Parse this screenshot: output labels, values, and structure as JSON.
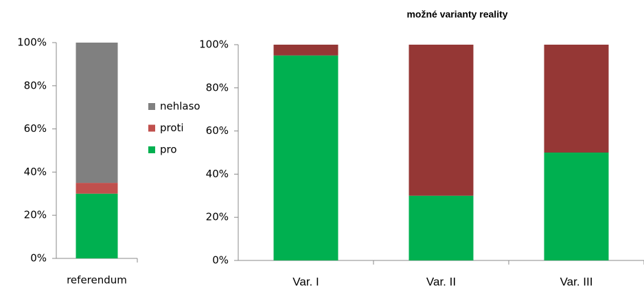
{
  "chart_data": [
    {
      "type": "bar",
      "stacked": true,
      "categories": [
        "referendum"
      ],
      "series": [
        {
          "name": "pro",
          "color": "#00b050",
          "values": [
            30
          ]
        },
        {
          "name": "proti",
          "color": "#c0504d",
          "values": [
            5
          ]
        },
        {
          "name": "nehlaso",
          "color": "#808080",
          "values": [
            65
          ]
        }
      ],
      "ylim": [
        0,
        100
      ],
      "yticks": [
        {
          "value": 0,
          "label": "0%"
        },
        {
          "value": 20,
          "label": "20%"
        },
        {
          "value": 40,
          "label": "40%"
        },
        {
          "value": 60,
          "label": "60%"
        },
        {
          "value": 80,
          "label": "80%"
        },
        {
          "value": 100,
          "label": "100%"
        }
      ],
      "legend": "right"
    },
    {
      "type": "bar",
      "stacked": true,
      "title": "možné varianty reality",
      "categories": [
        "Var. I",
        "Var. II",
        "Var. III"
      ],
      "series": [
        {
          "color": "#00b050",
          "values": [
            95,
            30,
            50
          ]
        },
        {
          "color": "#953735",
          "values": [
            5,
            70,
            50
          ]
        }
      ],
      "ylim": [
        0,
        100
      ],
      "yticks": [
        {
          "value": 0,
          "label": "0%"
        },
        {
          "value": 20,
          "label": "20%"
        },
        {
          "value": 40,
          "label": "40%"
        },
        {
          "value": 60,
          "label": "60%"
        },
        {
          "value": 80,
          "label": "80%"
        },
        {
          "value": 100,
          "label": "100%"
        }
      ]
    }
  ]
}
